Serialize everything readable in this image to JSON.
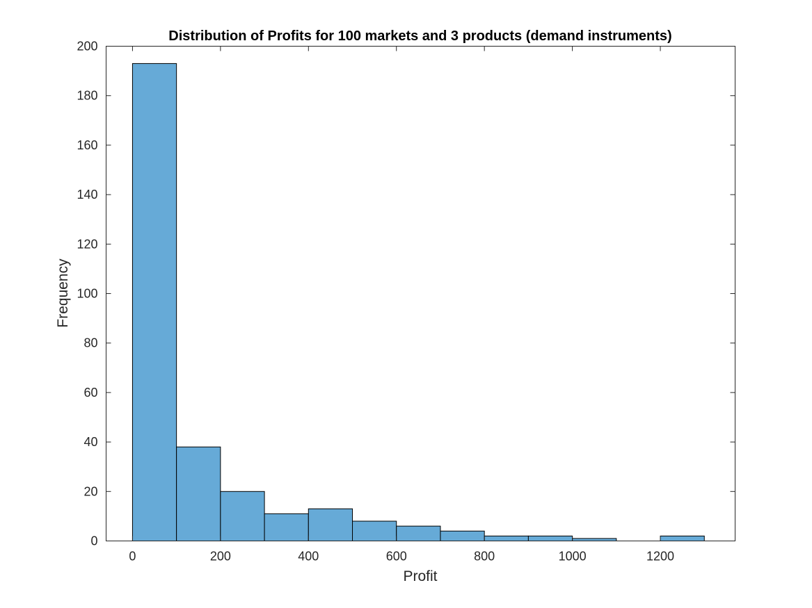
{
  "chart_data": {
    "type": "bar",
    "title": "Distribution of Profits for 100 markets and 3 products (demand instruments)",
    "xlabel": "Profit",
    "ylabel": "Frequency",
    "xlim": [
      -60,
      1370
    ],
    "ylim": [
      0,
      200
    ],
    "bar_color": "#66aad7",
    "bin_edges": [
      0,
      100,
      200,
      300,
      400,
      500,
      600,
      700,
      800,
      900,
      1000,
      1100,
      1200,
      1300
    ],
    "values": [
      193,
      38,
      20,
      11,
      13,
      8,
      6,
      4,
      2,
      2,
      1,
      0,
      2
    ],
    "x_ticks": [
      0,
      200,
      400,
      600,
      800,
      1000,
      1200
    ],
    "x_tick_labels": [
      "0",
      "200",
      "400",
      "600",
      "800",
      "1000",
      "1200"
    ],
    "y_ticks": [
      0,
      20,
      40,
      60,
      80,
      100,
      120,
      140,
      160,
      180,
      200
    ],
    "y_tick_labels": [
      "0",
      "20",
      "40",
      "60",
      "80",
      "100",
      "120",
      "140",
      "160",
      "180",
      "200"
    ],
    "grid": false
  }
}
